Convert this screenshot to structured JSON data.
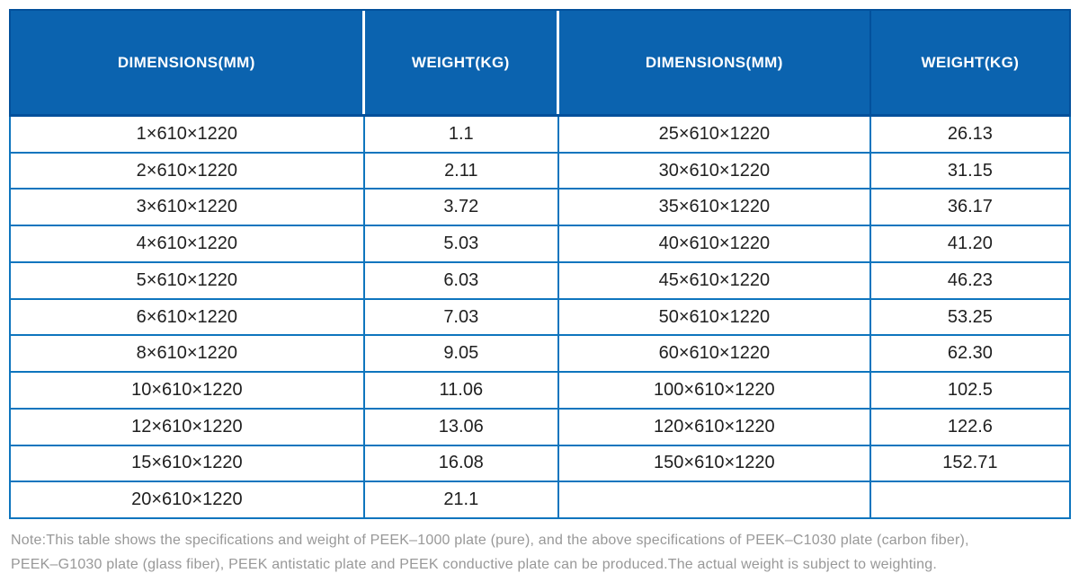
{
  "chart_data": {
    "type": "table",
    "title": "",
    "columns": [
      "DIMENSIONS(MM)",
      "WEIGHT(KG)",
      "DIMENSIONS(MM)",
      "WEIGHT(KG)"
    ],
    "rows": [
      [
        "1×610×1220",
        "1.1",
        "25×610×1220",
        "26.13"
      ],
      [
        "2×610×1220",
        "2.11",
        "30×610×1220",
        "31.15"
      ],
      [
        "3×610×1220",
        "3.72",
        "35×610×1220",
        "36.17"
      ],
      [
        "4×610×1220",
        "5.03",
        "40×610×1220",
        "41.20"
      ],
      [
        "5×610×1220",
        "6.03",
        "45×610×1220",
        "46.23"
      ],
      [
        "6×610×1220",
        "7.03",
        "50×610×1220",
        "53.25"
      ],
      [
        "8×610×1220",
        "9.05",
        "60×610×1220",
        "62.30"
      ],
      [
        "10×610×1220",
        "11.06",
        "100×610×1220",
        "102.5"
      ],
      [
        "12×610×1220",
        "13.06",
        "120×610×1220",
        "122.6"
      ],
      [
        "15×610×1220",
        "16.08",
        "150×610×1220",
        "152.71"
      ],
      [
        "20×610×1220",
        "21.1",
        "",
        ""
      ]
    ],
    "note": "Note:This table shows the specifications and weight of PEEK–1000 plate (pure), and the above specifications of PEEK–C1030 plate (carbon fiber), PEEK–G1030 plate (glass fiber), PEEK antistatic plate and PEEK conductive plate can be produced.The actual weight is subject to weighting."
  },
  "note": {
    "line1": "Note:This table shows the specifications and weight of PEEK–1000 plate (pure), and the above specifications of PEEK–C1030 plate (carbon fiber),",
    "line2": "PEEK–G1030 plate (glass fiber), PEEK antistatic plate and PEEK conductive plate can be produced.The actual weight is subject to weighting."
  },
  "colors": {
    "header_bg": "#0B63AF",
    "header_edge": "#03509B",
    "grid_border": "#0E75BE",
    "body_text": "#1F1F1F",
    "note_text": "#989898"
  }
}
